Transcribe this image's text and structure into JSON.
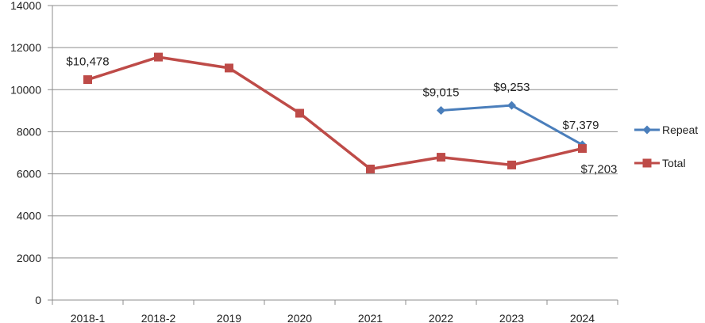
{
  "chart_data": {
    "type": "line",
    "categories": [
      "2018-1",
      "2018-2",
      "2019",
      "2020",
      "2021",
      "2022",
      "2023",
      "2024"
    ],
    "ylim": [
      0,
      14000
    ],
    "yticks": [
      0,
      2000,
      4000,
      6000,
      8000,
      10000,
      12000,
      14000
    ],
    "grid": true,
    "legend_position": "right",
    "series": [
      {
        "name": "Repeat",
        "color": "#4a7ebb",
        "marker": "diamond",
        "values": [
          null,
          null,
          null,
          null,
          null,
          9015,
          9253,
          7379
        ],
        "data_labels": [
          "",
          "",
          "",
          "",
          "",
          "$9,015",
          "$9,253",
          "$7,379"
        ]
      },
      {
        "name": "Total",
        "color": "#be4b48",
        "marker": "square",
        "values": [
          10478,
          11550,
          11030,
          8880,
          6230,
          6790,
          6420,
          7203
        ],
        "data_labels": [
          "$10,478",
          "",
          "",
          "",
          "",
          "",
          "",
          "$7,203"
        ]
      }
    ]
  }
}
